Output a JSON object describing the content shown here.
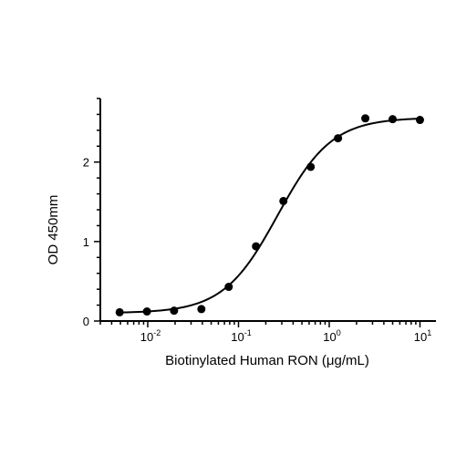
{
  "chart_data": {
    "type": "scatter",
    "title": "",
    "xlabel": "Biotinylated Human RON (μg/mL)",
    "ylabel": "OD 450mm",
    "x_scale": "log",
    "xlim": [
      0.003,
      15
    ],
    "ylim": [
      0,
      2.8
    ],
    "grid": false,
    "legend": "none",
    "x_ticks": [
      {
        "value": 0.01,
        "base": "10",
        "exp": "-2"
      },
      {
        "value": 0.1,
        "base": "10",
        "exp": "-1"
      },
      {
        "value": 1,
        "base": "10",
        "exp": "0"
      },
      {
        "value": 10,
        "base": "10",
        "exp": "1"
      }
    ],
    "y_ticks": [
      {
        "value": 0,
        "label": "0"
      },
      {
        "value": 1,
        "label": "1"
      },
      {
        "value": 2,
        "label": "2"
      }
    ],
    "series": [
      {
        "points": [
          {
            "x": 0.0049,
            "y": 0.11
          },
          {
            "x": 0.0098,
            "y": 0.12
          },
          {
            "x": 0.0195,
            "y": 0.13
          },
          {
            "x": 0.039,
            "y": 0.15
          },
          {
            "x": 0.078,
            "y": 0.43
          },
          {
            "x": 0.156,
            "y": 0.94
          },
          {
            "x": 0.3125,
            "y": 1.51
          },
          {
            "x": 0.625,
            "y": 1.94
          },
          {
            "x": 1.25,
            "y": 2.3
          },
          {
            "x": 2.5,
            "y": 2.55
          },
          {
            "x": 5,
            "y": 2.54
          },
          {
            "x": 10,
            "y": 2.53
          }
        ]
      }
    ],
    "fit": {
      "model": "4PL",
      "bottom": 0.1,
      "top": 2.56,
      "ec50": 0.27,
      "hill": 1.45
    }
  }
}
